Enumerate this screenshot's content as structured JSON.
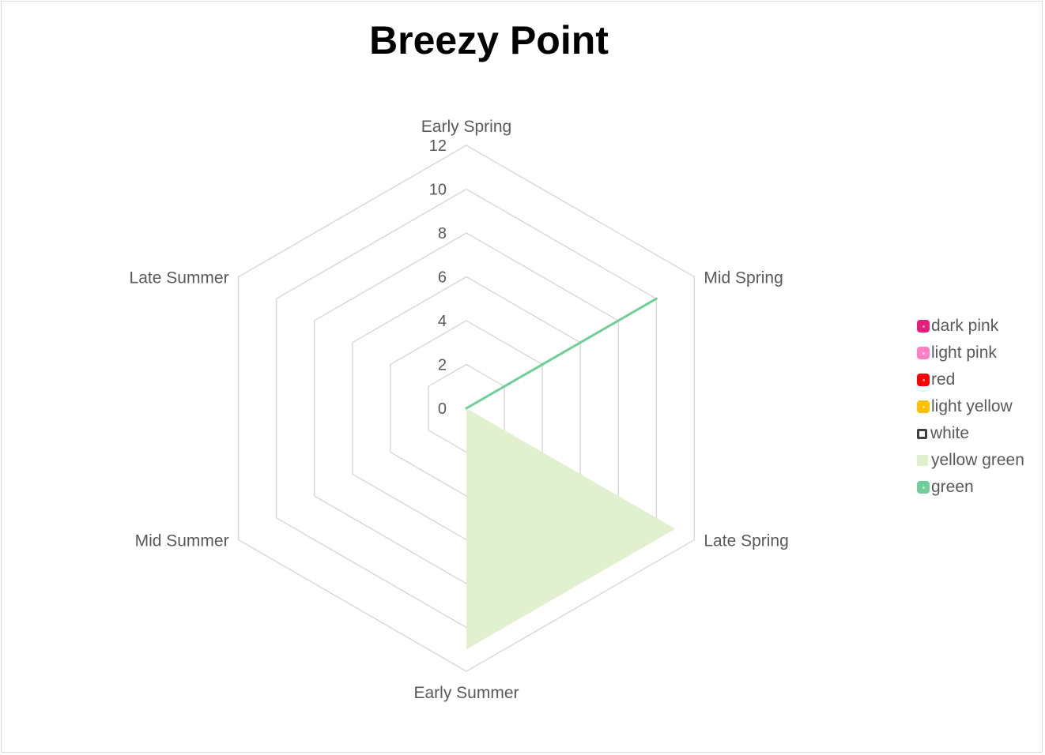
{
  "chart_data": {
    "type": "radar",
    "title": "Breezy Point",
    "categories": [
      "Early Spring",
      "Mid Spring",
      "Late Spring",
      "Early Summer",
      "Mid Summer",
      "Late Summer"
    ],
    "rmax": 12,
    "ticks": [
      0,
      2,
      4,
      6,
      8,
      10,
      12
    ],
    "grid": true,
    "legend_position": "right",
    "series": [
      {
        "name": "dark pink",
        "color": "#e5207a",
        "style": "marker",
        "values": [
          0,
          0,
          0,
          0,
          0,
          0
        ]
      },
      {
        "name": "light pink",
        "color": "#ff7fc4",
        "style": "marker",
        "values": [
          0,
          0,
          0,
          0,
          0,
          0
        ]
      },
      {
        "name": "red",
        "color": "#ff0000",
        "style": "marker",
        "values": [
          0,
          0,
          0,
          0,
          0,
          0
        ]
      },
      {
        "name": "light yellow",
        "color": "#ffc000",
        "style": "marker",
        "values": [
          0,
          0,
          0,
          0,
          0,
          0
        ]
      },
      {
        "name": "white",
        "color": "#404040",
        "style": "marker",
        "values": [
          0,
          0,
          0,
          0,
          0,
          0
        ]
      },
      {
        "name": "yellow green",
        "color": "#dff0cc",
        "style": "area",
        "values": [
          0,
          0,
          11,
          11,
          0,
          0
        ]
      },
      {
        "name": "green",
        "color": "#6fcf97",
        "style": "line",
        "values": [
          0,
          10,
          0,
          0,
          0,
          0
        ]
      }
    ]
  }
}
